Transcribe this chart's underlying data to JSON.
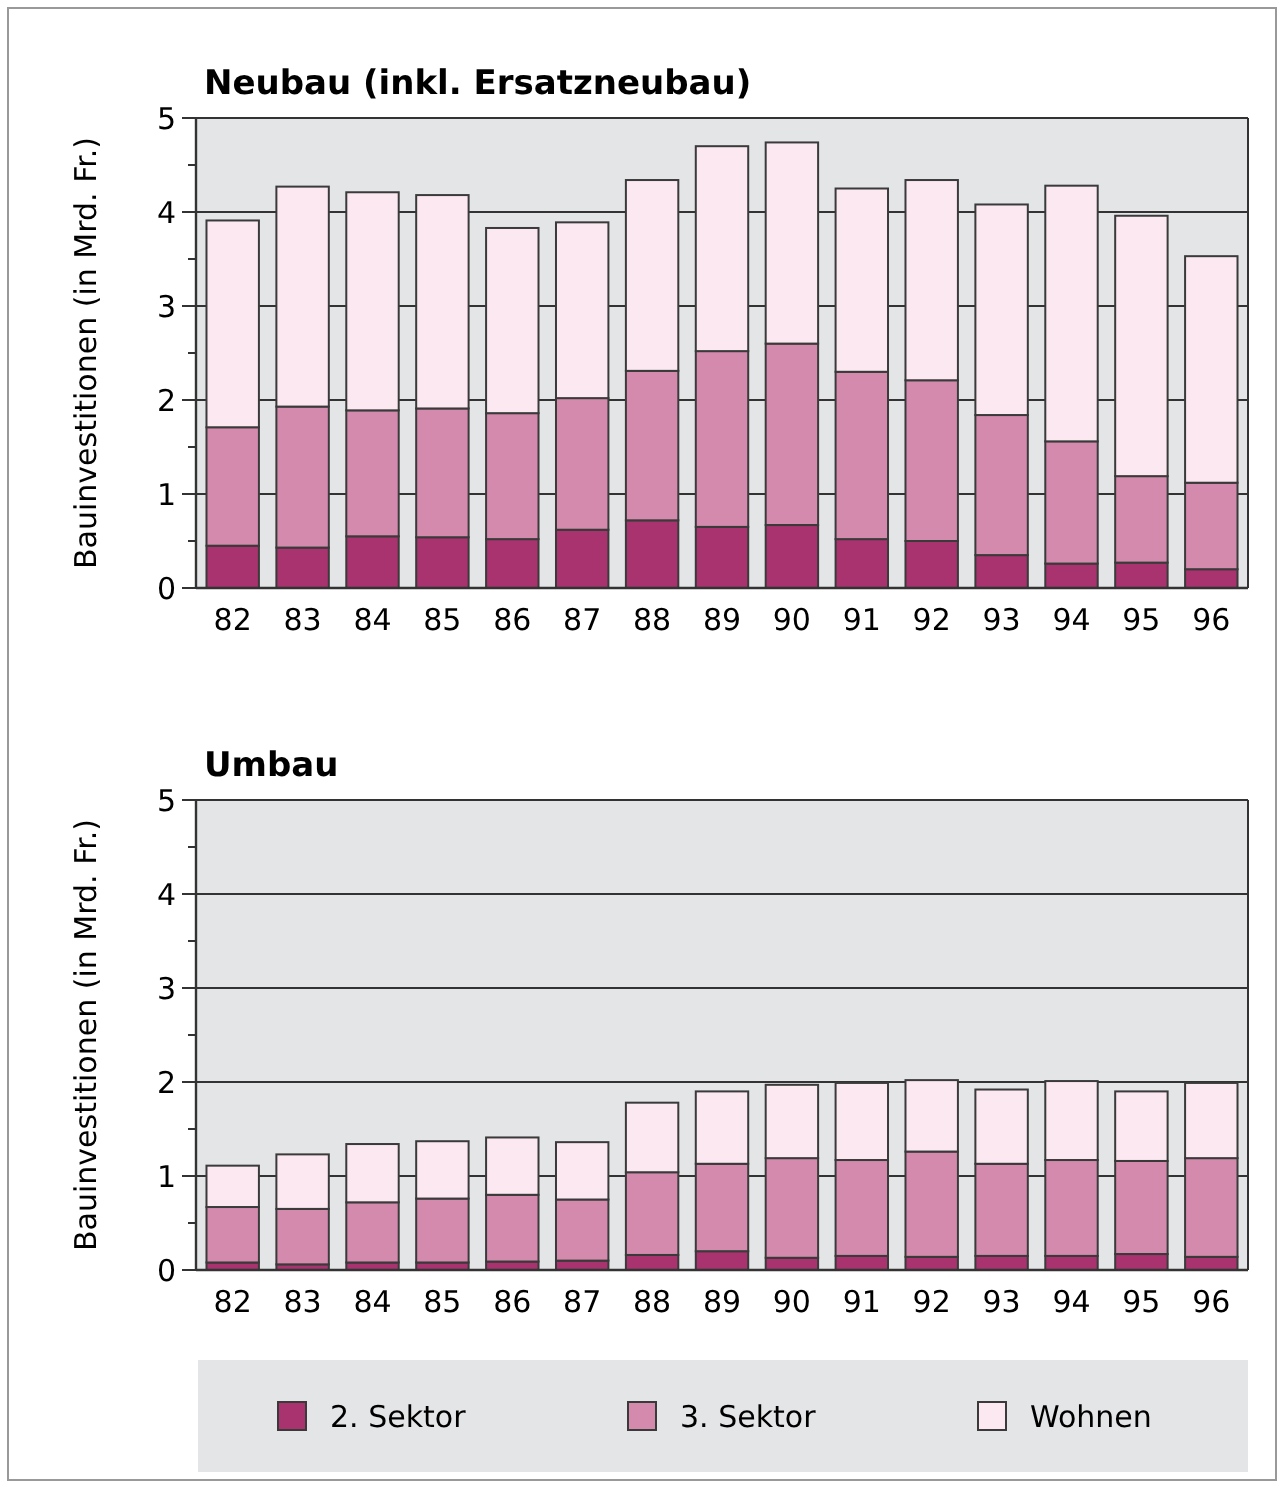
{
  "chart_data": [
    {
      "type": "bar",
      "title": "Neubau  (inkl. Ersatzneubau)",
      "ylabel": "Bauinvestitionen (in Mrd. Fr.)",
      "stacked": true,
      "grid": "y",
      "categories": [
        "82",
        "83",
        "84",
        "85",
        "86",
        "87",
        "88",
        "89",
        "90",
        "91",
        "92",
        "93",
        "94",
        "95",
        "96"
      ],
      "series": [
        {
          "color": "#a8336e",
          "values": [
            0.45,
            0.43,
            0.55,
            0.54,
            0.52,
            0.62,
            0.72,
            0.65,
            0.67,
            0.52,
            0.5,
            0.35,
            0.26,
            0.27,
            0.2
          ]
        },
        {
          "color": "#d48aad",
          "values": [
            1.26,
            1.5,
            1.34,
            1.37,
            1.34,
            1.4,
            1.59,
            1.87,
            1.93,
            1.78,
            1.71,
            1.49,
            1.3,
            0.92,
            0.92
          ]
        },
        {
          "color": "#fce8f1",
          "values": [
            2.2,
            2.34,
            2.32,
            2.27,
            1.97,
            1.87,
            2.03,
            2.18,
            2.14,
            1.95,
            2.13,
            2.24,
            2.72,
            2.77,
            2.41
          ]
        }
      ],
      "ylim": [
        0,
        5
      ],
      "yticks": [
        0,
        {
          "value": 0.5,
          "label": null
        },
        1,
        {
          "value": 1.5,
          "label": null
        },
        2,
        {
          "value": 2.5,
          "label": null
        },
        3,
        {
          "value": 3.5,
          "label": null
        },
        4,
        {
          "value": 4.5,
          "label": null
        },
        5
      ]
    },
    {
      "type": "bar",
      "title": "Umbau",
      "ylabel": "Bauinvestitionen (in Mrd. Fr.)",
      "stacked": true,
      "grid": "y",
      "legend": "bottom",
      "categories": [
        "82",
        "83",
        "84",
        "85",
        "86",
        "87",
        "88",
        "89",
        "90",
        "91",
        "92",
        "93",
        "94",
        "95",
        "96"
      ],
      "series": [
        {
          "name": "2. Sektor",
          "color": "#a8336e",
          "values": [
            0.08,
            0.06,
            0.08,
            0.08,
            0.09,
            0.1,
            0.16,
            0.2,
            0.13,
            0.15,
            0.14,
            0.15,
            0.15,
            0.17,
            0.14
          ]
        },
        {
          "name": "3. Sektor",
          "color": "#d48aad",
          "values": [
            0.59,
            0.59,
            0.64,
            0.68,
            0.71,
            0.65,
            0.88,
            0.93,
            1.06,
            1.02,
            1.12,
            0.98,
            1.02,
            0.99,
            1.05
          ]
        },
        {
          "name": "Wohnen",
          "color": "#fce8f1",
          "values": [
            0.44,
            0.58,
            0.62,
            0.61,
            0.61,
            0.61,
            0.74,
            0.77,
            0.78,
            0.82,
            0.76,
            0.79,
            0.84,
            0.74,
            0.8
          ]
        }
      ],
      "ylim": [
        0,
        5
      ],
      "yticks": [
        0,
        {
          "value": 0.5,
          "label": null
        },
        1,
        {
          "value": 1.5,
          "label": null
        },
        2,
        {
          "value": 2.5,
          "label": null
        },
        3,
        {
          "value": 3.5,
          "label": null
        },
        4,
        {
          "value": 4.5,
          "label": null
        },
        5
      ]
    }
  ]
}
